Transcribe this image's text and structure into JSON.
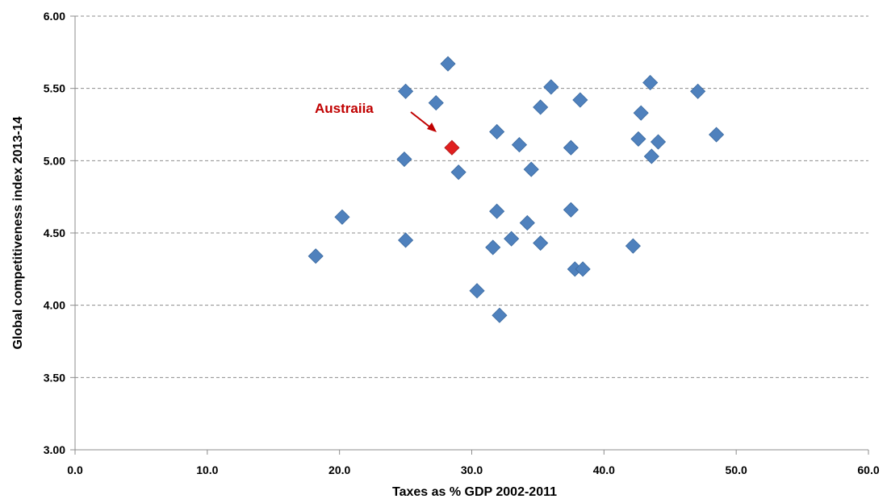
{
  "chart_data": {
    "type": "scatter",
    "title": "",
    "xlabel": "Taxes as % GDP 2002-2011",
    "ylabel": "Global competitiveness index 2013-14",
    "xlim": [
      0,
      60
    ],
    "ylim": [
      3.0,
      6.0
    ],
    "x_ticks": [
      "0.0",
      "10.0",
      "20.0",
      "30.0",
      "40.0",
      "50.0",
      "60.0"
    ],
    "y_ticks": [
      "3.00",
      "3.50",
      "4.00",
      "4.50",
      "5.00",
      "5.50",
      "6.00"
    ],
    "grid": "horizontal dashed",
    "legend": "none",
    "colors": {
      "series": "#4f81bd",
      "highlight": "#e01f1f",
      "annotation": "#c00000",
      "grid": "#8c8c8c",
      "axis": "#8c8c8c"
    },
    "points": [
      {
        "x": 18.2,
        "y": 4.34
      },
      {
        "x": 20.2,
        "y": 4.61
      },
      {
        "x": 24.9,
        "y": 5.01
      },
      {
        "x": 25.0,
        "y": 4.45
      },
      {
        "x": 25.0,
        "y": 5.48
      },
      {
        "x": 27.3,
        "y": 5.4
      },
      {
        "x": 28.2,
        "y": 5.67
      },
      {
        "x": 29.0,
        "y": 4.92
      },
      {
        "x": 30.4,
        "y": 4.1
      },
      {
        "x": 31.6,
        "y": 4.4
      },
      {
        "x": 31.9,
        "y": 4.65
      },
      {
        "x": 31.9,
        "y": 5.2
      },
      {
        "x": 32.1,
        "y": 3.93
      },
      {
        "x": 33.0,
        "y": 4.46
      },
      {
        "x": 33.6,
        "y": 5.11
      },
      {
        "x": 34.2,
        "y": 4.57
      },
      {
        "x": 34.5,
        "y": 4.94
      },
      {
        "x": 35.2,
        "y": 4.43
      },
      {
        "x": 35.2,
        "y": 5.37
      },
      {
        "x": 36.0,
        "y": 5.51
      },
      {
        "x": 37.5,
        "y": 4.66
      },
      {
        "x": 37.5,
        "y": 5.09
      },
      {
        "x": 37.8,
        "y": 4.25
      },
      {
        "x": 38.2,
        "y": 5.42
      },
      {
        "x": 38.4,
        "y": 4.25
      },
      {
        "x": 42.2,
        "y": 4.41
      },
      {
        "x": 42.6,
        "y": 5.15
      },
      {
        "x": 42.8,
        "y": 5.33
      },
      {
        "x": 43.5,
        "y": 5.54
      },
      {
        "x": 43.6,
        "y": 5.03
      },
      {
        "x": 44.1,
        "y": 5.13
      },
      {
        "x": 47.1,
        "y": 5.48
      },
      {
        "x": 48.5,
        "y": 5.18
      }
    ],
    "highlight": {
      "label": "Austraiia",
      "x": 28.5,
      "y": 5.09
    }
  }
}
